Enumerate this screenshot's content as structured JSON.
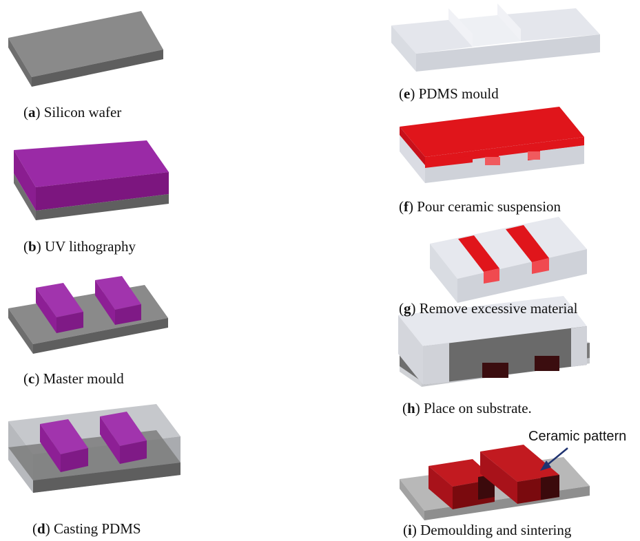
{
  "steps": [
    {
      "letter": "a",
      "text": "Silicon wafer"
    },
    {
      "letter": "b",
      "text": "UV lithography"
    },
    {
      "letter": "c",
      "text": "Master mould"
    },
    {
      "letter": "d",
      "text": "Casting PDMS"
    },
    {
      "letter": "e",
      "text": "PDMS mould"
    },
    {
      "letter": "f",
      "text": "Pour ceramic suspension"
    },
    {
      "letter": "g",
      "text": "Remove excessive material"
    },
    {
      "letter": "h",
      "text": "Place on substrate."
    },
    {
      "letter": "i",
      "text": "Demoulding and sintering"
    }
  ],
  "callout": {
    "label": "Ceramic pattern"
  },
  "colors": {
    "silicon": "#7a7a7a",
    "photoresist": "#8f1b9b",
    "pdms": "#dadce3",
    "ceramic": "#e0151b",
    "sintered": "#9c1014",
    "arrow": "#1f3370"
  }
}
